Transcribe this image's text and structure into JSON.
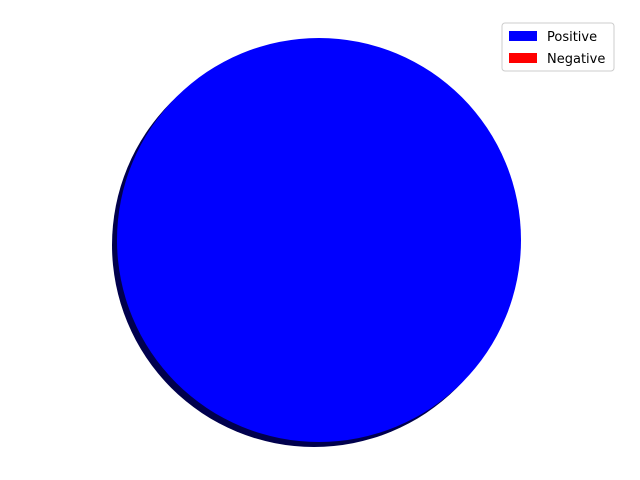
{
  "chart_data": {
    "type": "pie",
    "categories": [
      "Positive",
      "Negative"
    ],
    "values": [
      100,
      0
    ],
    "colors": [
      "#0000ff",
      "#ff0000"
    ],
    "shadow": true,
    "title": "",
    "legend": {
      "position": "top-right",
      "entries": [
        {
          "label": "Positive",
          "color": "#0000ff"
        },
        {
          "label": "Negative",
          "color": "#ff0000"
        }
      ]
    }
  }
}
